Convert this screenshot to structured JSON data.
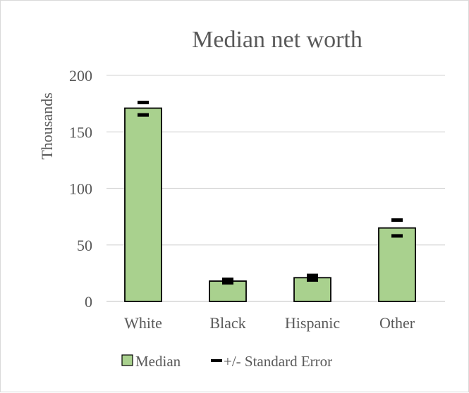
{
  "chart_data": {
    "type": "bar",
    "title": "Median net worth",
    "xlabel": "",
    "ylabel": "Thousands",
    "categories": [
      "White",
      "Black",
      "Hispanic",
      "Other"
    ],
    "series": [
      {
        "name": "Median",
        "values": [
          171,
          18,
          21,
          65
        ]
      }
    ],
    "error_markers": {
      "name": "+/- Standard Error",
      "upper": [
        176,
        19.5,
        23,
        72
      ],
      "lower": [
        165,
        16.5,
        19,
        58
      ]
    },
    "ylim": [
      0,
      200
    ],
    "yticks": [
      0,
      50,
      100,
      150,
      200
    ],
    "grid": true,
    "legend_position": "bottom",
    "colors": {
      "bar_fill": "#a9d18e",
      "bar_stroke": "#000000",
      "grid": "#d9d9d9",
      "text": "#595959",
      "marker": "#000000"
    }
  }
}
